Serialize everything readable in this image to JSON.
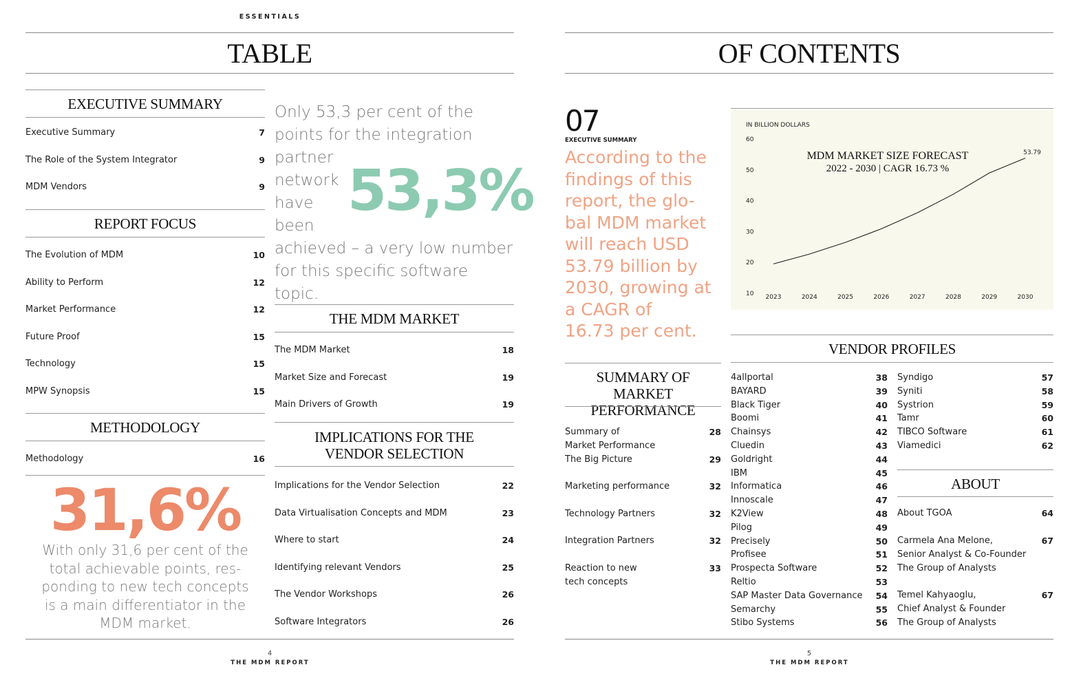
{
  "left_page": {
    "kicker": "ESSENTIALS",
    "title": "TABLE",
    "executive_summary": {
      "heading": "EXECUTIVE SUMMARY",
      "items": [
        {
          "label": "Executive Summary",
          "page": "7"
        },
        {
          "label": "The Role of the System Integrator",
          "page": "9"
        },
        {
          "label": "MDM Vendors",
          "page": "9"
        }
      ]
    },
    "report_focus": {
      "heading": "REPORT FOCUS",
      "items": [
        {
          "label": "The Evolution of MDM",
          "page": "10"
        },
        {
          "label": "Ability to Perform",
          "page": "12"
        },
        {
          "label": "Market Performance",
          "page": "12"
        },
        {
          "label": "Future Proof",
          "page": "15"
        },
        {
          "label": "Technology",
          "page": "15"
        },
        {
          "label": "MPW Synopsis",
          "page": "15"
        }
      ]
    },
    "methodology": {
      "heading": "METHODOLOGY",
      "items": [
        {
          "label": "Methodology",
          "page": "16"
        }
      ]
    },
    "stat_orange": {
      "value": "31,6%",
      "text": "With only 31,6 per cent of the total achievable points, res-ponding to new tech concepts is a main differentiator in the MDM market.",
      "lines": [
        "With only 31,6 per cent of the",
        "total achievable points, res-",
        "ponding to new tech concepts",
        "is a main differentiator in the",
        "MDM market."
      ]
    },
    "stat_green": {
      "value": "53,3%",
      "lines_top": [
        "Only 53,3 per cent of the",
        "points for the integration"
      ],
      "lines_left": [
        "partner",
        "network",
        "have",
        "been"
      ],
      "lines_bottom": [
        "achieved – a very low number",
        "for this specific software topic."
      ]
    },
    "mdm_market": {
      "heading": "THE MDM MARKET",
      "items": [
        {
          "label": "The MDM Market",
          "page": "18"
        },
        {
          "label": "Market Size and Forecast",
          "page": "19"
        },
        {
          "label": "Main Drivers of Growth",
          "page": "19"
        }
      ]
    },
    "implications": {
      "heading_line1": "IMPLICATIONS FOR THE",
      "heading_line2": "VENDOR SELECTION",
      "items": [
        {
          "label": "Implications for the Vendor Selection",
          "page": "22"
        },
        {
          "label": "Data Virtualisation Concepts and MDM",
          "page": "23"
        },
        {
          "label": "Where to start",
          "page": "24"
        },
        {
          "label": "Identifying relevant Vendors",
          "page": "25"
        },
        {
          "label": "The Vendor Workshops",
          "page": "26"
        },
        {
          "label": "Software Integrators",
          "page": "26"
        }
      ]
    },
    "footer": {
      "page_number": "4",
      "publication": "THE MDM REPORT"
    }
  },
  "right_page": {
    "title": "OF CONTENTS",
    "exec_number": "07",
    "exec_label": "EXECUTIVE SUMMARY",
    "exec_lines": [
      "According to the",
      "findings of this",
      "report, the glo-",
      "bal MDM market",
      "will reach USD",
      "53.79 billion by",
      "2030, growing at",
      "a CAGR of",
      "16.73 per cent."
    ],
    "summary_market": {
      "heading_line1": "SUMMARY OF MARKET",
      "heading_line2": "PERFORMANCE",
      "items": [
        {
          "label_line1": "Summary of",
          "label_line2": "Market Performance",
          "page": "28"
        },
        {
          "label_line1": "The Big Picture",
          "label_line2": "",
          "page": "29"
        },
        {
          "label_line1": "Marketing performance",
          "label_line2": "",
          "page": "32"
        },
        {
          "label_line1": "Technology Partners",
          "label_line2": "",
          "page": "32"
        },
        {
          "label_line1": "Integration Partners",
          "label_line2": "",
          "page": "32"
        },
        {
          "label_line1": "Reaction to new",
          "label_line2": "tech concepts",
          "page": "33"
        }
      ]
    },
    "vendor_profiles": {
      "heading": "VENDOR PROFILES",
      "col1": [
        {
          "label": "4allportal",
          "page": "38"
        },
        {
          "label": "BAYARD",
          "page": "39"
        },
        {
          "label": "Black Tiger",
          "page": "40"
        },
        {
          "label": "Boomi",
          "page": "41"
        },
        {
          "label": "Chainsys",
          "page": "42"
        },
        {
          "label": "Cluedin",
          "page": "43"
        },
        {
          "label": "Goldright",
          "page": "44"
        },
        {
          "label": "IBM",
          "page": "45"
        },
        {
          "label": "Informatica",
          "page": "46"
        },
        {
          "label": "Innoscale",
          "page": "47"
        },
        {
          "label": "K2View",
          "page": "48"
        },
        {
          "label": "Pilog",
          "page": "49"
        },
        {
          "label": "Precisely",
          "page": "50"
        },
        {
          "label": "Profisee",
          "page": "51"
        },
        {
          "label": "Prospecta Software",
          "page": "52"
        },
        {
          "label": "Reltio",
          "page": "53"
        },
        {
          "label": "SAP Master Data Governance",
          "page": "54"
        },
        {
          "label": "Semarchy",
          "page": "55"
        },
        {
          "label": "Stibo Systems",
          "page": "56"
        }
      ],
      "col2": [
        {
          "label": "Syndigo",
          "page": "57"
        },
        {
          "label": "Syniti",
          "page": "58"
        },
        {
          "label": "Systrion",
          "page": "59"
        },
        {
          "label": "Tamr",
          "page": "60"
        },
        {
          "label": "TIBCO Software",
          "page": "61"
        },
        {
          "label": "Viamedici",
          "page": "62"
        }
      ]
    },
    "about": {
      "heading": "ABOUT",
      "items": [
        {
          "lines": [
            "About TGOA"
          ],
          "page": "64"
        },
        {
          "lines": [
            "Carmela Ana Melone,",
            "Senior Analyst & Co-Founder",
            "The Group of Analysts"
          ],
          "page": "67"
        },
        {
          "lines": [
            "Temel Kahyaoglu,",
            "Chief Analyst & Founder",
            "The Group of Analysts"
          ],
          "page": "67"
        }
      ]
    },
    "footer": {
      "page_number": "5",
      "publication": "THE MDM REPORT"
    }
  },
  "chart_data": {
    "type": "line",
    "title": "MDM MARKET SIZE FORECAST",
    "subtitle": "2022 - 2030 | CAGR 16.73 %",
    "ylabel": "IN BILLION DOLLARS",
    "xlabel": "",
    "x": [
      "2023",
      "2024",
      "2025",
      "2026",
      "2027",
      "2028",
      "2029",
      "2030"
    ],
    "y_ticks": [
      10,
      20,
      30,
      40,
      50,
      60
    ],
    "ylim": [
      10,
      60
    ],
    "series": [
      {
        "values": [
          19.5,
          22.7,
          26.5,
          30.9,
          36.1,
          42.1,
          49.0,
          53.79
        ]
      }
    ],
    "annotations": [
      {
        "x": "2030",
        "label": "53.79"
      }
    ],
    "line_color": "#222222",
    "background_color": "#f8f8ec",
    "grid": false
  },
  "colors": {
    "orange": "#ec8a6a",
    "orange_text": "#f0a384",
    "green": "#8ccbb1",
    "grey_text": "#7a7a7a",
    "rule": "#8a8a8a"
  }
}
